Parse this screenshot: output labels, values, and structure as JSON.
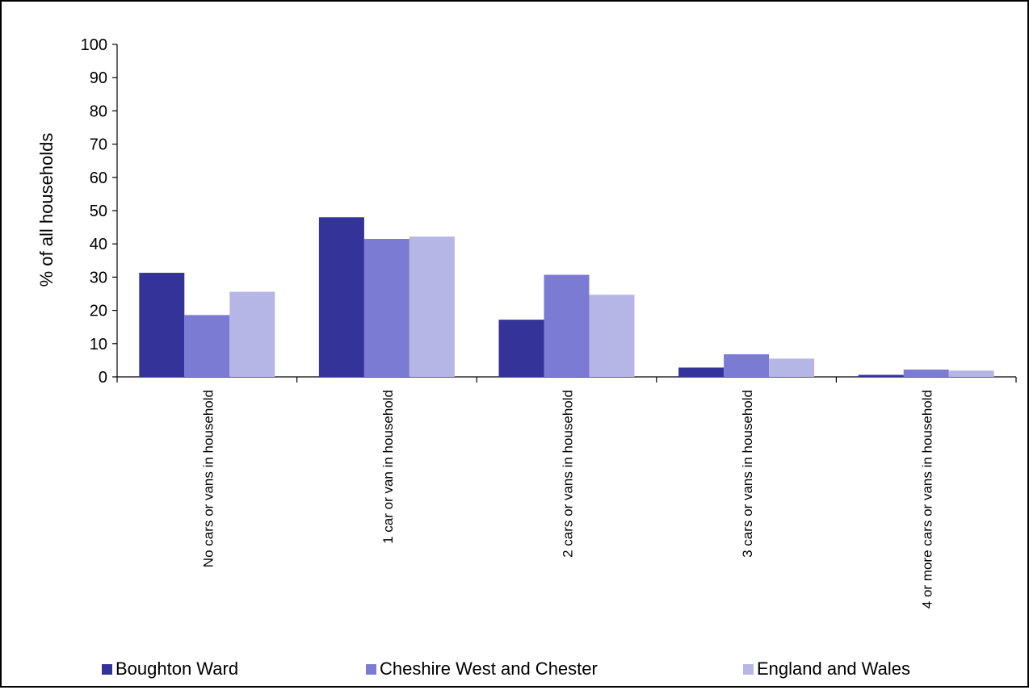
{
  "chart_data": {
    "type": "bar",
    "title": "",
    "xlabel": "",
    "ylabel": "% of all households",
    "ylim": [
      0,
      100
    ],
    "yticks": [
      0,
      10,
      20,
      30,
      40,
      50,
      60,
      70,
      80,
      90,
      100
    ],
    "grid": false,
    "legend_position": "bottom",
    "categories": [
      "No cars or vans in household",
      "1 car or van in household",
      "2 cars or vans in household",
      "3 cars or vans in household",
      "4 or more cars or vans in household"
    ],
    "series": [
      {
        "name": "Boughton Ward",
        "color": "#333399",
        "values": [
          31.3,
          48.0,
          17.2,
          2.8,
          0.6
        ]
      },
      {
        "name": "Cheshire West and Chester",
        "color": "#7b7bd4",
        "values": [
          18.6,
          41.5,
          30.7,
          6.8,
          2.2
        ]
      },
      {
        "name": "England and Wales",
        "color": "#b6b6e6",
        "values": [
          25.6,
          42.2,
          24.7,
          5.5,
          1.9
        ]
      }
    ]
  }
}
